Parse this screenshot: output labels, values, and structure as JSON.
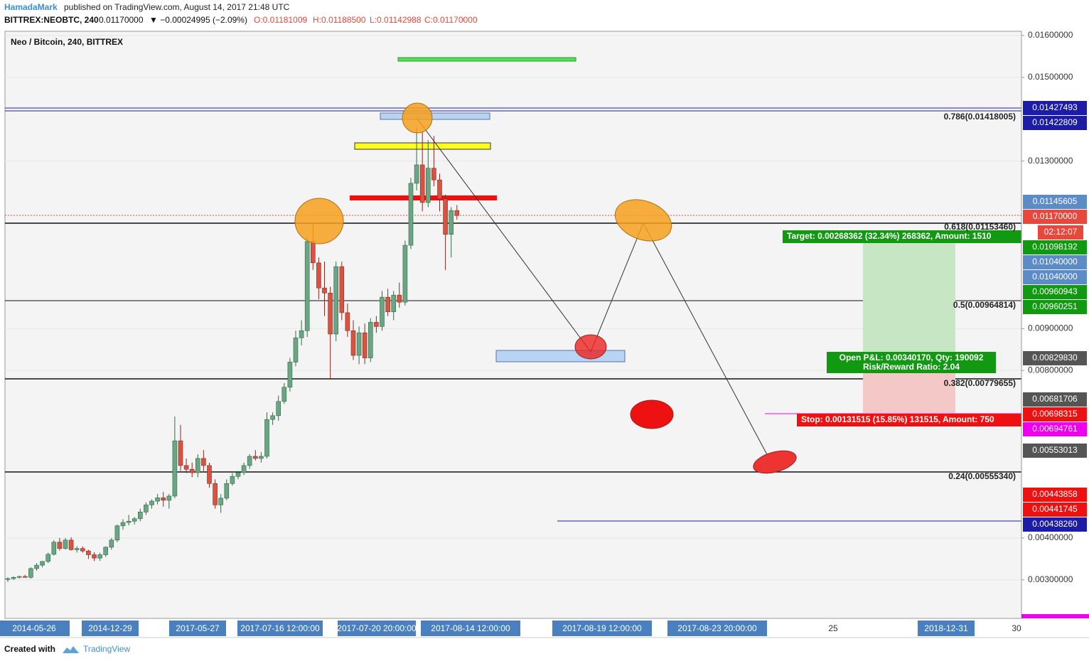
{
  "header": {
    "author": "HamadaMark",
    "published": "published on TradingView.com, August 14, 2017 21:48 UTC",
    "symbol": "BITTREX:NEOBTC, 240",
    "last": "0.01170000",
    "change": "▼ −0.00024995 (−2.09%)",
    "ohlc": [
      "O:0.01181009",
      "H:0.01188500",
      "L:0.01142988",
      "C:0.01170000"
    ]
  },
  "chart_data": {
    "type": "candlestick",
    "title": "Neo / Bitcoin, 240, BITTREX",
    "up_color": "#6ba583",
    "down_color": "#d75442",
    "ylim": [
      0.00208,
      0.0161
    ],
    "yticks": [
      {
        "value": 0.016,
        "label": "0.01600000"
      },
      {
        "value": 0.015,
        "label": "0.01500000"
      },
      {
        "value": 0.013,
        "label": "0.01300000"
      },
      {
        "value": 0.009,
        "label": "0.00900000"
      },
      {
        "value": 0.008,
        "label": "0.00800000"
      },
      {
        "value": 0.004,
        "label": "0.00400000"
      },
      {
        "value": 0.003,
        "label": "0.00300000"
      }
    ],
    "candles": [
      [
        0.00301,
        0.00306,
        0.00295,
        0.00303
      ],
      [
        0.00303,
        0.00308,
        0.003,
        0.00306
      ],
      [
        0.00306,
        0.0031,
        0.00303,
        0.00308
      ],
      [
        0.00308,
        0.00312,
        0.00305,
        0.00306
      ],
      [
        0.00306,
        0.0033,
        0.00303,
        0.00327
      ],
      [
        0.00327,
        0.0034,
        0.00322,
        0.00335
      ],
      [
        0.00335,
        0.00345,
        0.0033,
        0.00344
      ],
      [
        0.00344,
        0.00365,
        0.0034,
        0.00361
      ],
      [
        0.00361,
        0.00395,
        0.00358,
        0.0039
      ],
      [
        0.0039,
        0.004,
        0.0037,
        0.00375
      ],
      [
        0.00375,
        0.004,
        0.00372,
        0.00395
      ],
      [
        0.00395,
        0.00402,
        0.0037,
        0.00372
      ],
      [
        0.00372,
        0.0038,
        0.00365,
        0.00375
      ],
      [
        0.00375,
        0.0038,
        0.00365,
        0.00369
      ],
      [
        0.00369,
        0.00372,
        0.0035,
        0.0036
      ],
      [
        0.0036,
        0.00366,
        0.00345,
        0.00352
      ],
      [
        0.00352,
        0.00365,
        0.00345,
        0.0036
      ],
      [
        0.0036,
        0.0038,
        0.00355,
        0.00378
      ],
      [
        0.00378,
        0.004,
        0.00372,
        0.00395
      ],
      [
        0.00395,
        0.00432,
        0.0039,
        0.00429
      ],
      [
        0.00429,
        0.00445,
        0.0042,
        0.00437
      ],
      [
        0.00437,
        0.00455,
        0.0043,
        0.0044
      ],
      [
        0.0044,
        0.0045,
        0.00432,
        0.00446
      ],
      [
        0.00446,
        0.0047,
        0.0044,
        0.00462
      ],
      [
        0.00462,
        0.00485,
        0.00455,
        0.00479
      ],
      [
        0.00479,
        0.00492,
        0.0047,
        0.00488
      ],
      [
        0.00488,
        0.00505,
        0.0048,
        0.00496
      ],
      [
        0.00496,
        0.0051,
        0.00475,
        0.0049
      ],
      [
        0.0049,
        0.00505,
        0.0047,
        0.005
      ],
      [
        0.005,
        0.0069,
        0.00495,
        0.00632
      ],
      [
        0.00632,
        0.0067,
        0.0056,
        0.00573
      ],
      [
        0.00573,
        0.0059,
        0.00555,
        0.00564
      ],
      [
        0.00564,
        0.0058,
        0.00545,
        0.00556
      ],
      [
        0.00556,
        0.006,
        0.00545,
        0.0059
      ],
      [
        0.0059,
        0.0061,
        0.0056,
        0.00573
      ],
      [
        0.00573,
        0.0058,
        0.0052,
        0.0053
      ],
      [
        0.0053,
        0.0054,
        0.0047,
        0.00479
      ],
      [
        0.00479,
        0.00505,
        0.0046,
        0.00495
      ],
      [
        0.00495,
        0.0054,
        0.0049,
        0.0053
      ],
      [
        0.0053,
        0.00555,
        0.00525,
        0.00547
      ],
      [
        0.00547,
        0.0056,
        0.0054,
        0.00556
      ],
      [
        0.00556,
        0.0058,
        0.0055,
        0.00573
      ],
      [
        0.00573,
        0.006,
        0.00565,
        0.00595
      ],
      [
        0.00595,
        0.0061,
        0.00585,
        0.0059
      ],
      [
        0.0059,
        0.00605,
        0.0058,
        0.00595
      ],
      [
        0.00595,
        0.007,
        0.0059,
        0.00683
      ],
      [
        0.00683,
        0.007,
        0.0067,
        0.00692
      ],
      [
        0.00692,
        0.0074,
        0.0068,
        0.00726
      ],
      [
        0.00726,
        0.0077,
        0.0072,
        0.0076
      ],
      [
        0.0076,
        0.0083,
        0.0075,
        0.0082
      ],
      [
        0.0082,
        0.00895,
        0.0081,
        0.00878
      ],
      [
        0.00878,
        0.0092,
        0.0086,
        0.00895
      ],
      [
        0.00895,
        0.0112,
        0.0088,
        0.01108
      ],
      [
        0.01108,
        0.0115,
        0.0104,
        0.01057
      ],
      [
        0.01057,
        0.0107,
        0.0097,
        0.00997
      ],
      [
        0.00997,
        0.0106,
        0.0093,
        0.00985
      ],
      [
        0.00985,
        0.01,
        0.0078,
        0.00887
      ],
      [
        0.00887,
        0.0106,
        0.0087,
        0.01048
      ],
      [
        0.01048,
        0.0106,
        0.0092,
        0.00938
      ],
      [
        0.00938,
        0.0096,
        0.0088,
        0.00895
      ],
      [
        0.00895,
        0.0092,
        0.00825,
        0.00836
      ],
      [
        0.00836,
        0.00905,
        0.00815,
        0.0089
      ],
      [
        0.0089,
        0.00912,
        0.00815,
        0.0083
      ],
      [
        0.0083,
        0.00925,
        0.0082,
        0.00915
      ],
      [
        0.00915,
        0.0093,
        0.0089,
        0.00905
      ],
      [
        0.00905,
        0.0099,
        0.00895,
        0.00975
      ],
      [
        0.00975,
        0.00995,
        0.0093,
        0.0094
      ],
      [
        0.0094,
        0.0099,
        0.0092,
        0.0098
      ],
      [
        0.0098,
        0.0101,
        0.0095,
        0.00963
      ],
      [
        0.00963,
        0.0111,
        0.00955,
        0.01099
      ],
      [
        0.01099,
        0.0126,
        0.0109,
        0.01247
      ],
      [
        0.01247,
        0.0138,
        0.0123,
        0.01291
      ],
      [
        0.01291,
        0.0137,
        0.0118,
        0.01201
      ],
      [
        0.01201,
        0.0135,
        0.0119,
        0.01283
      ],
      [
        0.01283,
        0.0136,
        0.0124,
        0.01255
      ],
      [
        0.01255,
        0.0127,
        0.0118,
        0.0121
      ],
      [
        0.0121,
        0.0122,
        0.0104,
        0.01125
      ],
      [
        0.01125,
        0.0119,
        0.0107,
        0.01182
      ],
      [
        0.01182,
        0.01195,
        0.0116,
        0.0117
      ]
    ],
    "xticks": [
      "2014-05-26",
      "2014-12-29",
      "2017-05-27",
      "2017-07-16 12:00:00",
      "2017-07-20 20:00:00",
      "2017-08-14 12:00:00",
      "2017-08-19 12:00:00",
      "2017-08-23 20:00:00",
      "25",
      "2018-12-31",
      "30"
    ],
    "fib_labels": [
      "0.786(0.01418005)",
      "0.618(0.01153460)",
      "0.5(0.00964814)",
      "0.382(0.00779655)",
      "0.24(0.00555340)"
    ],
    "price_tags": [
      {
        "label": "0.01427493",
        "color": "#1c1ca8"
      },
      {
        "label": "0.01422809",
        "color": "#1c1ca8"
      },
      {
        "label": "0.01145605",
        "color": "#5b8cc8"
      },
      {
        "label": "0.01170000",
        "color": "#e8473b"
      },
      {
        "label": "02:12:07",
        "color": "#e8473b"
      },
      {
        "label": "0.01098192",
        "color": "#119911"
      },
      {
        "label": "0.01040000",
        "color": "#5b8cc8"
      },
      {
        "label": "0.01040000",
        "color": "#5b8cc8"
      },
      {
        "label": "0.00960943",
        "color": "#119911"
      },
      {
        "label": "0.00960251",
        "color": "#119911"
      },
      {
        "label": "0.00829830",
        "color": "#555555"
      },
      {
        "label": "0.00681706",
        "color": "#555555"
      },
      {
        "label": "0.00698315",
        "color": "#ee1111"
      },
      {
        "label": "0.00694761",
        "color": "#ee00ee"
      },
      {
        "label": "0.00553013",
        "color": "#555555"
      },
      {
        "label": "0.00443858",
        "color": "#ee1111"
      },
      {
        "label": "0.00441745",
        "color": "#ee1111"
      },
      {
        "label": "0.00438260",
        "color": "#1c1ca8"
      }
    ],
    "position": {
      "target": "Target: 0.00268362 (32.34%) 268362, Amount: 1510",
      "pnl": "Open P&L: 0.00340170, Qty: 190092",
      "ratio": "Risk/Reward Ratio: 2.04",
      "stop": "Stop: 0.00131515 (15.85%) 131515, Amount: 750"
    }
  },
  "footer": {
    "created": "Created with",
    "brand": "TradingView"
  }
}
